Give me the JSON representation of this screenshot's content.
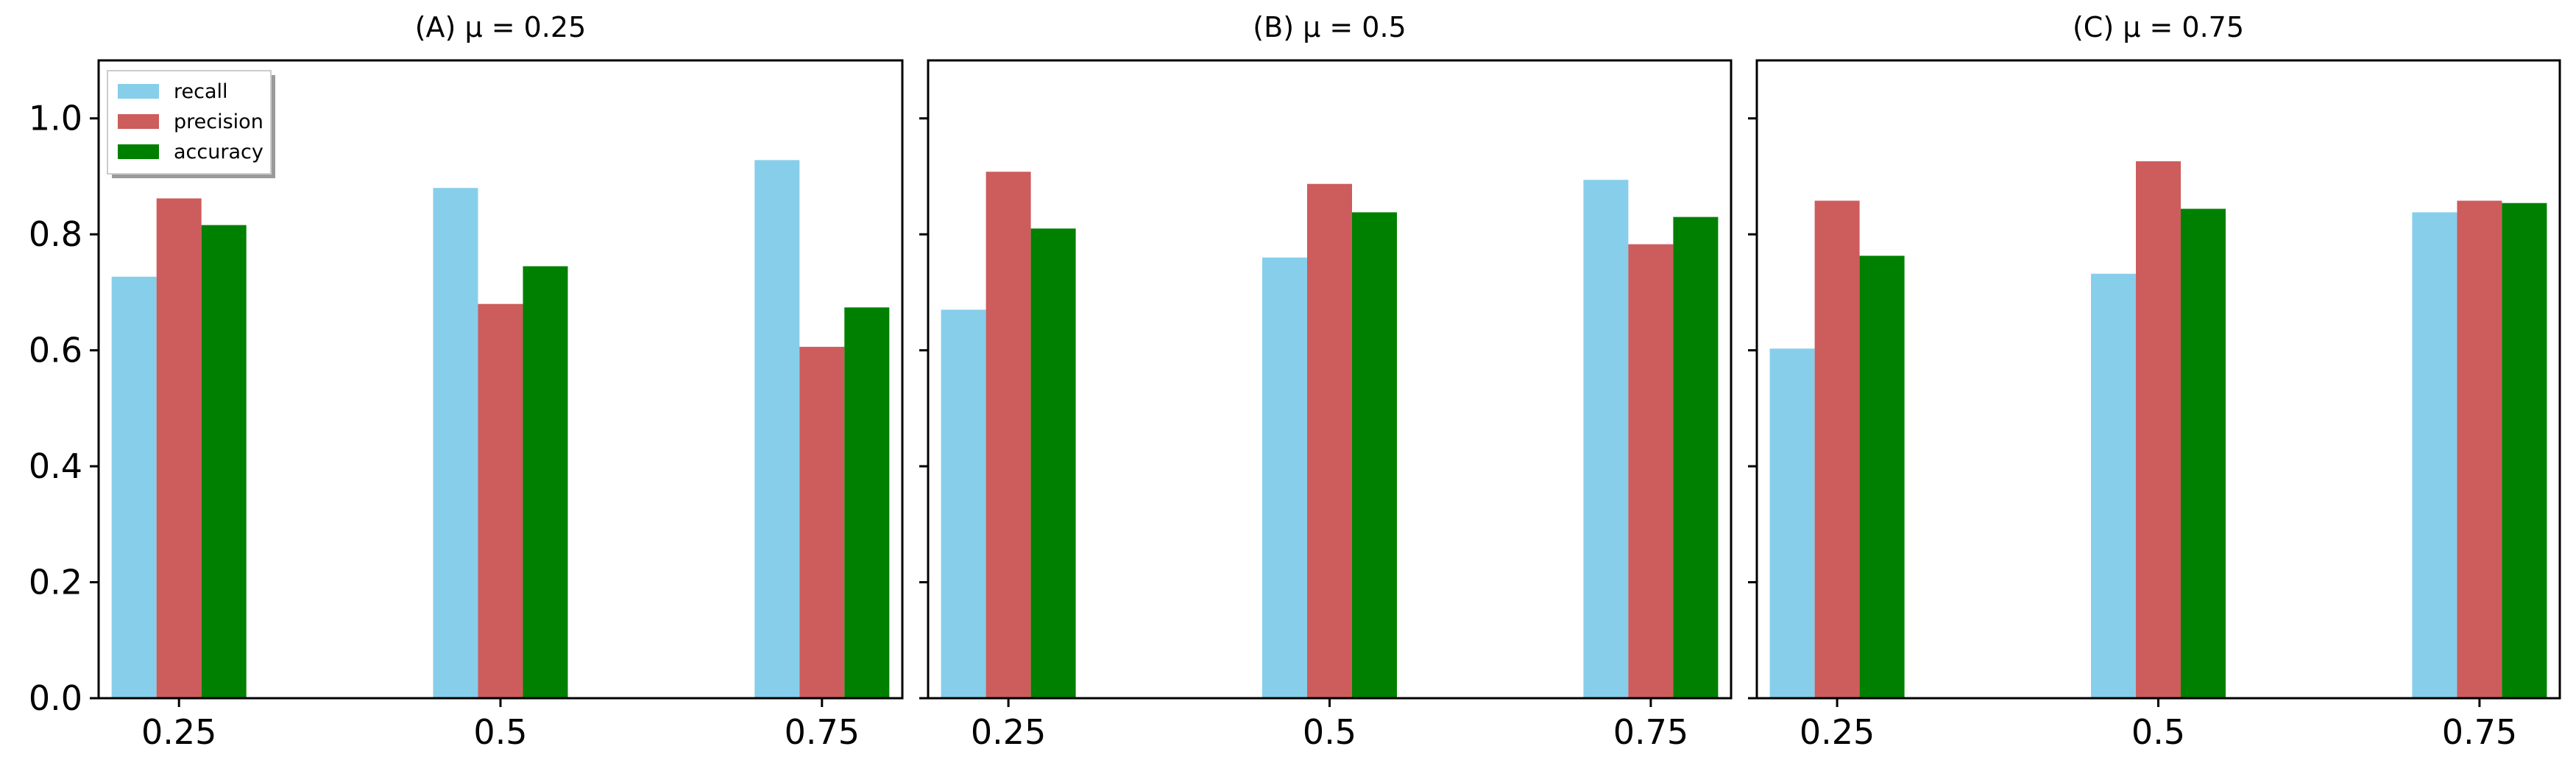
{
  "chart_data": [
    {
      "type": "bar",
      "title": "(A) μ = 0.25",
      "categories": [
        "0.25",
        "0.5",
        "0.75"
      ],
      "series": [
        {
          "name": "recall",
          "values": [
            0.727,
            0.88,
            0.928
          ]
        },
        {
          "name": "precision",
          "values": [
            0.862,
            0.68,
            0.606
          ]
        },
        {
          "name": "accuracy",
          "values": [
            0.816,
            0.745,
            0.674
          ]
        }
      ],
      "ylim": [
        0,
        1.1
      ],
      "yticks": [
        "0.0",
        "0.2",
        "0.4",
        "0.6",
        "0.8",
        "1.0"
      ],
      "legend": "upper-left"
    },
    {
      "type": "bar",
      "title": "(B) μ = 0.5",
      "categories": [
        "0.25",
        "0.5",
        "0.75"
      ],
      "series": [
        {
          "name": "recall",
          "values": [
            0.67,
            0.76,
            0.894
          ]
        },
        {
          "name": "precision",
          "values": [
            0.908,
            0.887,
            0.783
          ]
        },
        {
          "name": "accuracy",
          "values": [
            0.81,
            0.838,
            0.83
          ]
        }
      ],
      "ylim": [
        0,
        1.1
      ],
      "yticks": [
        "0.0",
        "0.2",
        "0.4",
        "0.6",
        "0.8",
        "1.0"
      ]
    },
    {
      "type": "bar",
      "title": "(C) μ = 0.75",
      "categories": [
        "0.25",
        "0.5",
        "0.75"
      ],
      "series": [
        {
          "name": "recall",
          "values": [
            0.603,
            0.732,
            0.838
          ]
        },
        {
          "name": "precision",
          "values": [
            0.858,
            0.926,
            0.858
          ]
        },
        {
          "name": "accuracy",
          "values": [
            0.763,
            0.844,
            0.854
          ]
        }
      ],
      "ylim": [
        0,
        1.1
      ],
      "yticks": [
        "0.0",
        "0.2",
        "0.4",
        "0.6",
        "0.8",
        "1.0"
      ]
    }
  ],
  "colors": {
    "recall": "#87ceeb",
    "precision": "#cd5c5c",
    "accuracy": "#008000",
    "axis": "#000000"
  }
}
